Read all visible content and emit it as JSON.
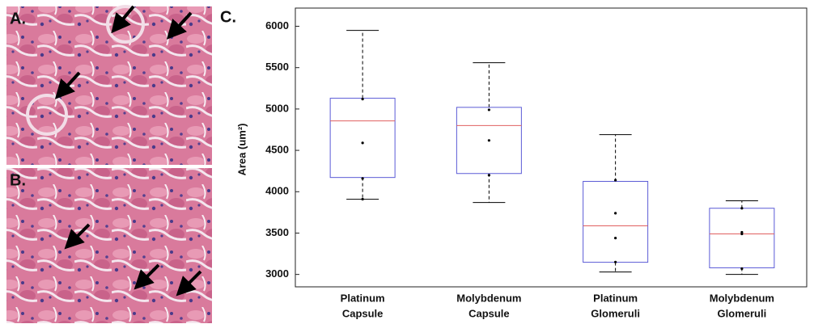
{
  "panels": [
    "A.",
    "B.",
    "C."
  ],
  "chart_data": {
    "type": "box",
    "y_label": "Area (um²)",
    "categories": [
      [
        "Platinum",
        "Capsule"
      ],
      [
        "Molybdenum",
        "Capsule"
      ],
      [
        "Platinum",
        "Glomeruli"
      ],
      [
        "Molybdenum",
        "Glomeruli"
      ]
    ],
    "boxes": [
      {
        "whisker_low": 3909,
        "q1": 4172,
        "median": 4856,
        "q3": 5130,
        "whisker_high": 5950,
        "points": [
          5120,
          4590,
          4160,
          3910
        ]
      },
      {
        "whisker_low": 3870,
        "q1": 4220,
        "median": 4800,
        "q3": 5020,
        "whisker_high": 5560,
        "points": [
          4990,
          4620,
          4200
        ]
      },
      {
        "whisker_low": 3030,
        "q1": 3147,
        "median": 3587,
        "q3": 4125,
        "whisker_high": 4690,
        "points": [
          4140,
          3740,
          3440,
          3150
        ]
      },
      {
        "whisker_low": 3000,
        "q1": 3080,
        "median": 3490,
        "q3": 3800,
        "whisker_high": 3890,
        "points": [
          3800,
          3510,
          3490,
          3070
        ]
      }
    ],
    "box_color": "#5b5bd6",
    "median_color": "#e06060",
    "whisker_color": "#000000",
    "ylim": [
      2850,
      6220
    ],
    "yticks": [
      3000,
      3500,
      4000,
      4500,
      5000,
      5500,
      6000
    ]
  }
}
